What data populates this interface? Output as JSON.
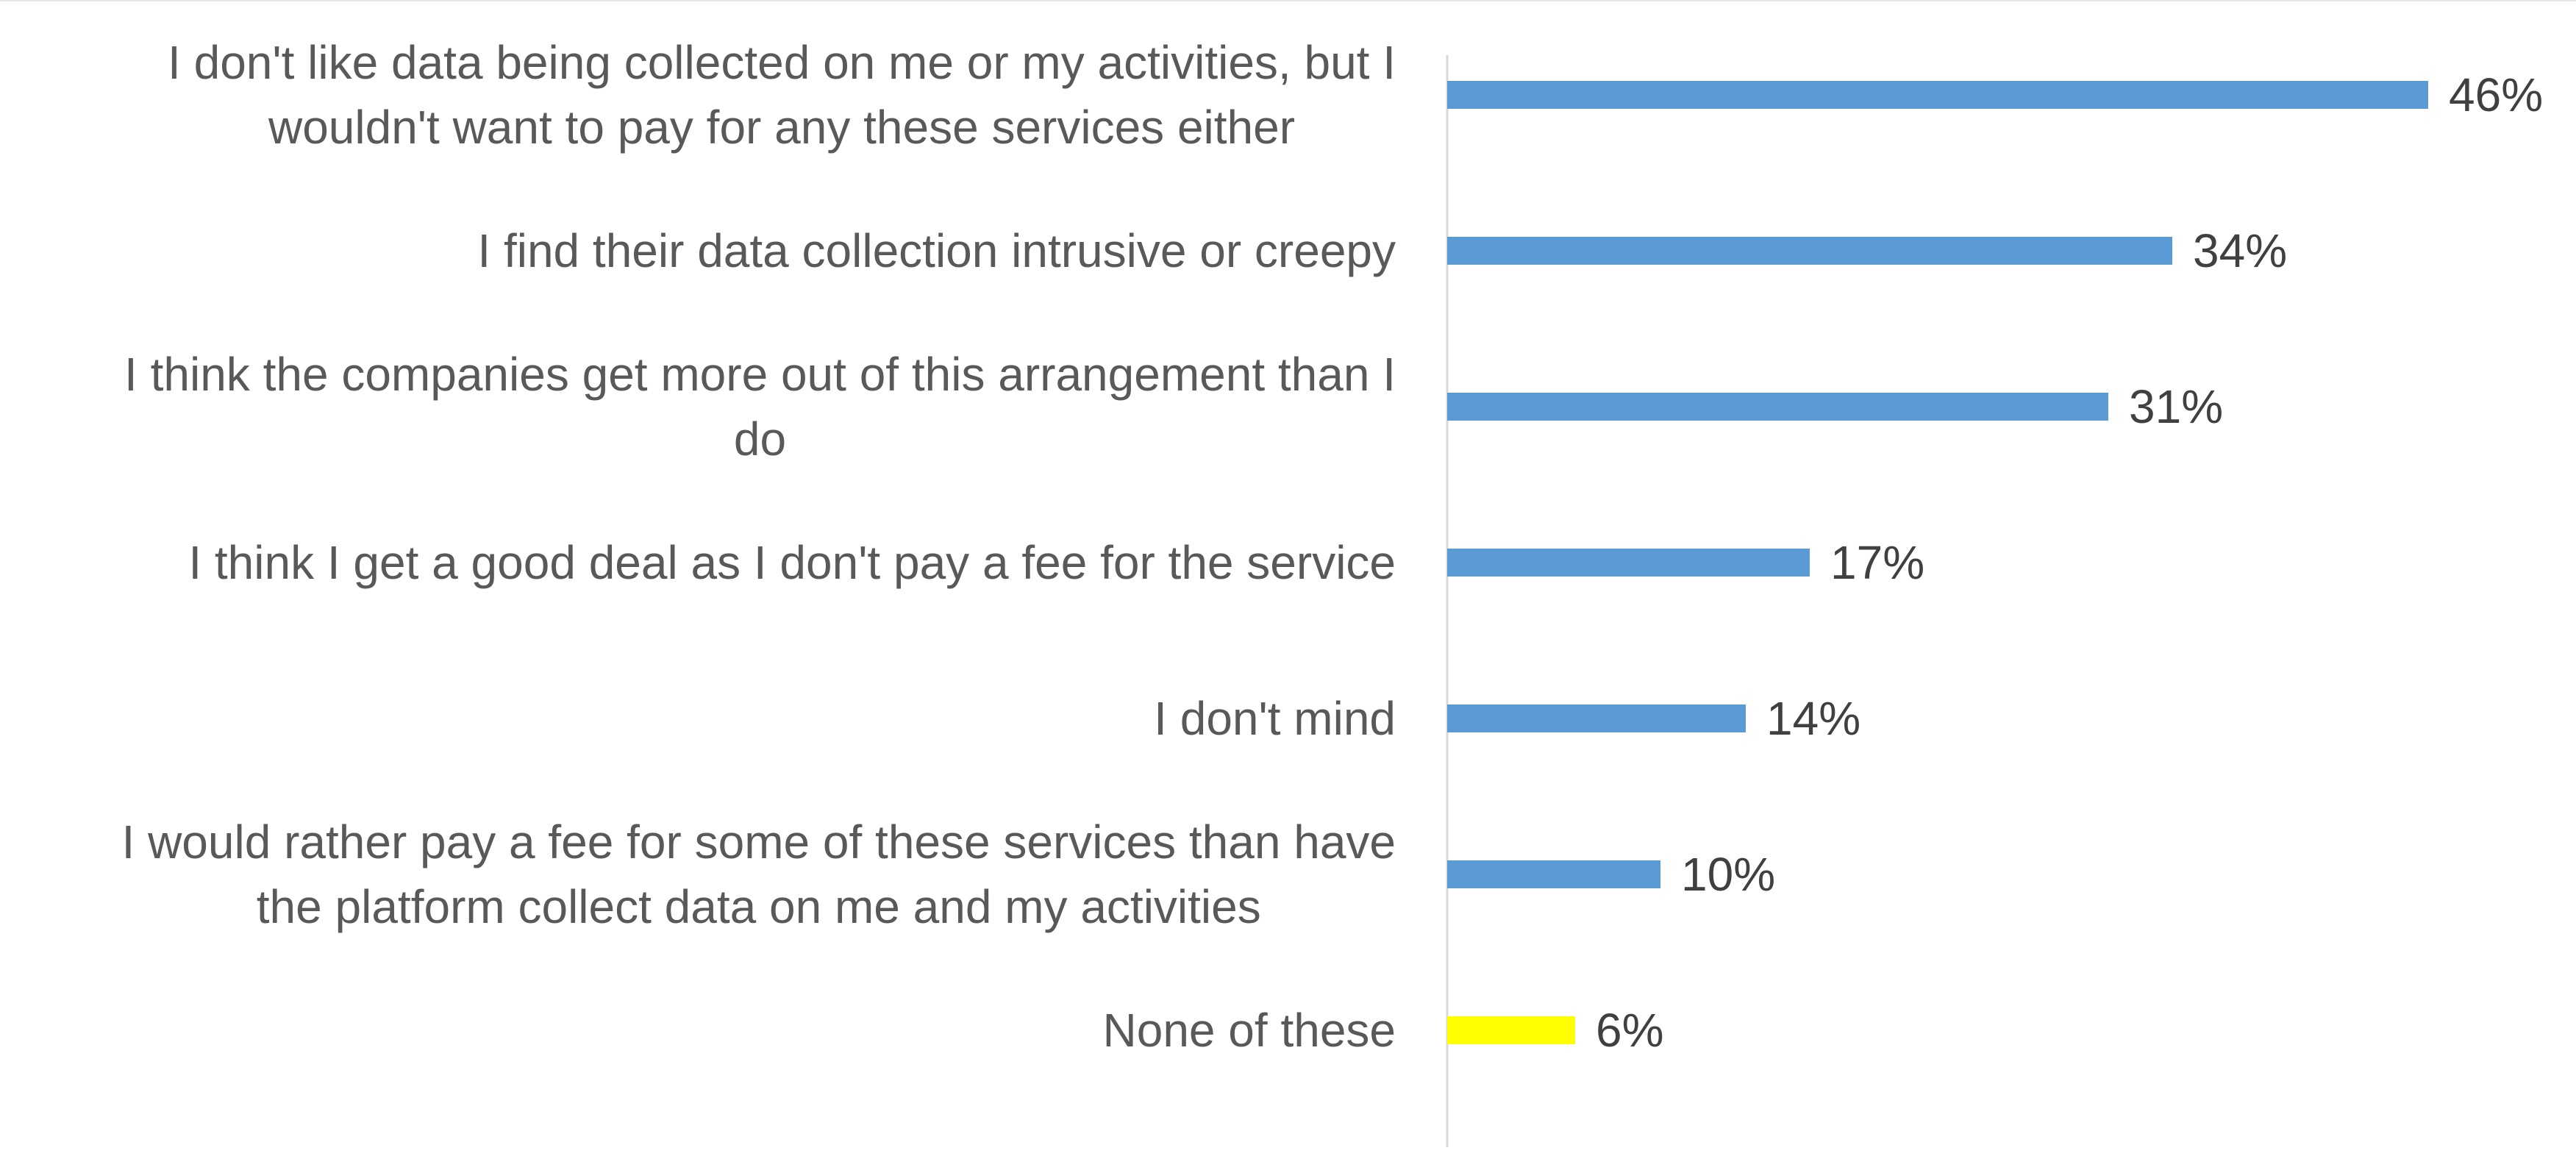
{
  "colors": {
    "default_bar": "#5b9bd5",
    "highlight_bar": "#ffff00",
    "axis_line": "#d9d9d9",
    "category_text": "#595959",
    "value_text": "#404040"
  },
  "chart_data": {
    "type": "bar",
    "orientation": "horizontal",
    "title": "",
    "xlabel": "",
    "ylabel": "",
    "xlim": [
      0,
      0.46
    ],
    "grid": false,
    "legend": "none",
    "categories": [
      "I don't like data being collected on me or my activities, but I wouldn't want to pay for any these services either",
      "I find their data collection intrusive or creepy",
      "I think the companies get more out of this arrangement than I do",
      "I think I get a good deal as I don't pay a fee for the service",
      "I don't mind",
      "I would rather pay a fee for some of these services than have the platform collect data on me and my activities",
      "None of these"
    ],
    "category_label_lines": [
      [
        "I don't like data being collected on me or my activities, but I",
        "wouldn't want to pay for any these services either"
      ],
      [
        "I find their data collection intrusive or creepy"
      ],
      [
        "I think the companies get more out of this arrangement than I",
        "do"
      ],
      [
        "I think I get a good deal as I don't pay a fee for the service"
      ],
      [
        "I don't mind"
      ],
      [
        "I would rather pay a fee for some of these services than have",
        "the platform collect data on me and my activities"
      ],
      [
        "None of these"
      ]
    ],
    "values": [
      0.46,
      0.34,
      0.31,
      0.17,
      0.14,
      0.1,
      0.06
    ],
    "value_labels": [
      "46%",
      "34%",
      "31%",
      "17%",
      "14%",
      "10%",
      "6%"
    ],
    "highlighted_category": "None of these"
  }
}
